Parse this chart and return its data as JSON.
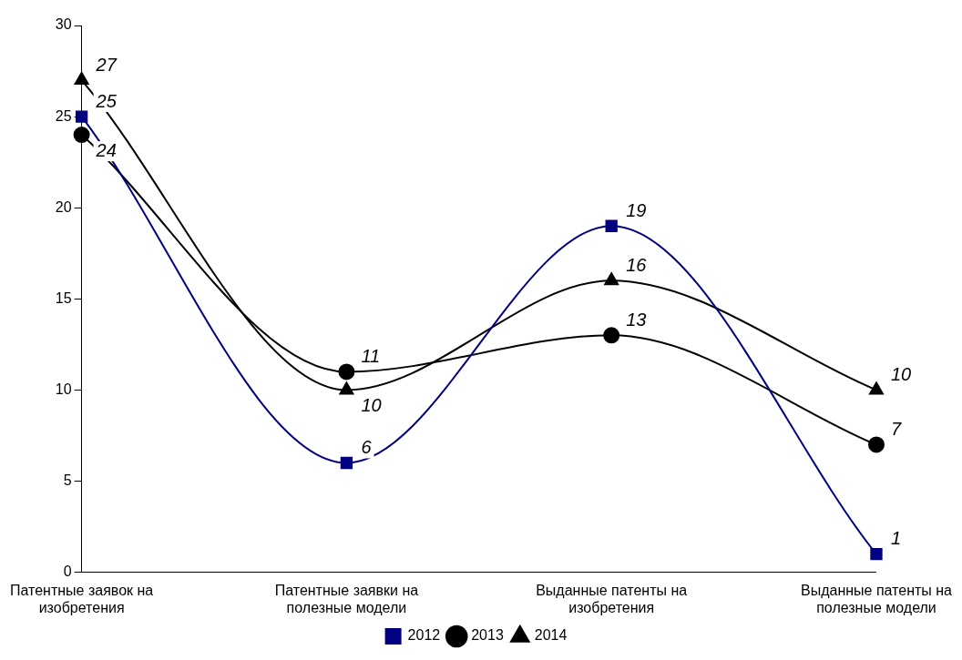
{
  "chart_data": {
    "type": "line",
    "categories": [
      "Патентные заявок на изобретения",
      "Патентные заявки на полезные модели",
      "Выданные патенты на изобретения",
      "Выданные патенты на полезные модели"
    ],
    "series": [
      {
        "name": "2012",
        "color": "#000080",
        "marker": "square",
        "values": [
          25,
          6,
          19,
          1
        ]
      },
      {
        "name": "2013",
        "color": "#000000",
        "marker": "circle",
        "values": [
          24,
          11,
          13,
          7
        ]
      },
      {
        "name": "2014",
        "color": "#000000",
        "marker": "triangle",
        "values": [
          27,
          10,
          16,
          10
        ]
      }
    ],
    "ylim": [
      0,
      30
    ],
    "yticks": [
      0,
      5,
      10,
      15,
      20,
      25,
      30
    ],
    "grid": false,
    "legend": "bottom",
    "data_labels": true
  }
}
